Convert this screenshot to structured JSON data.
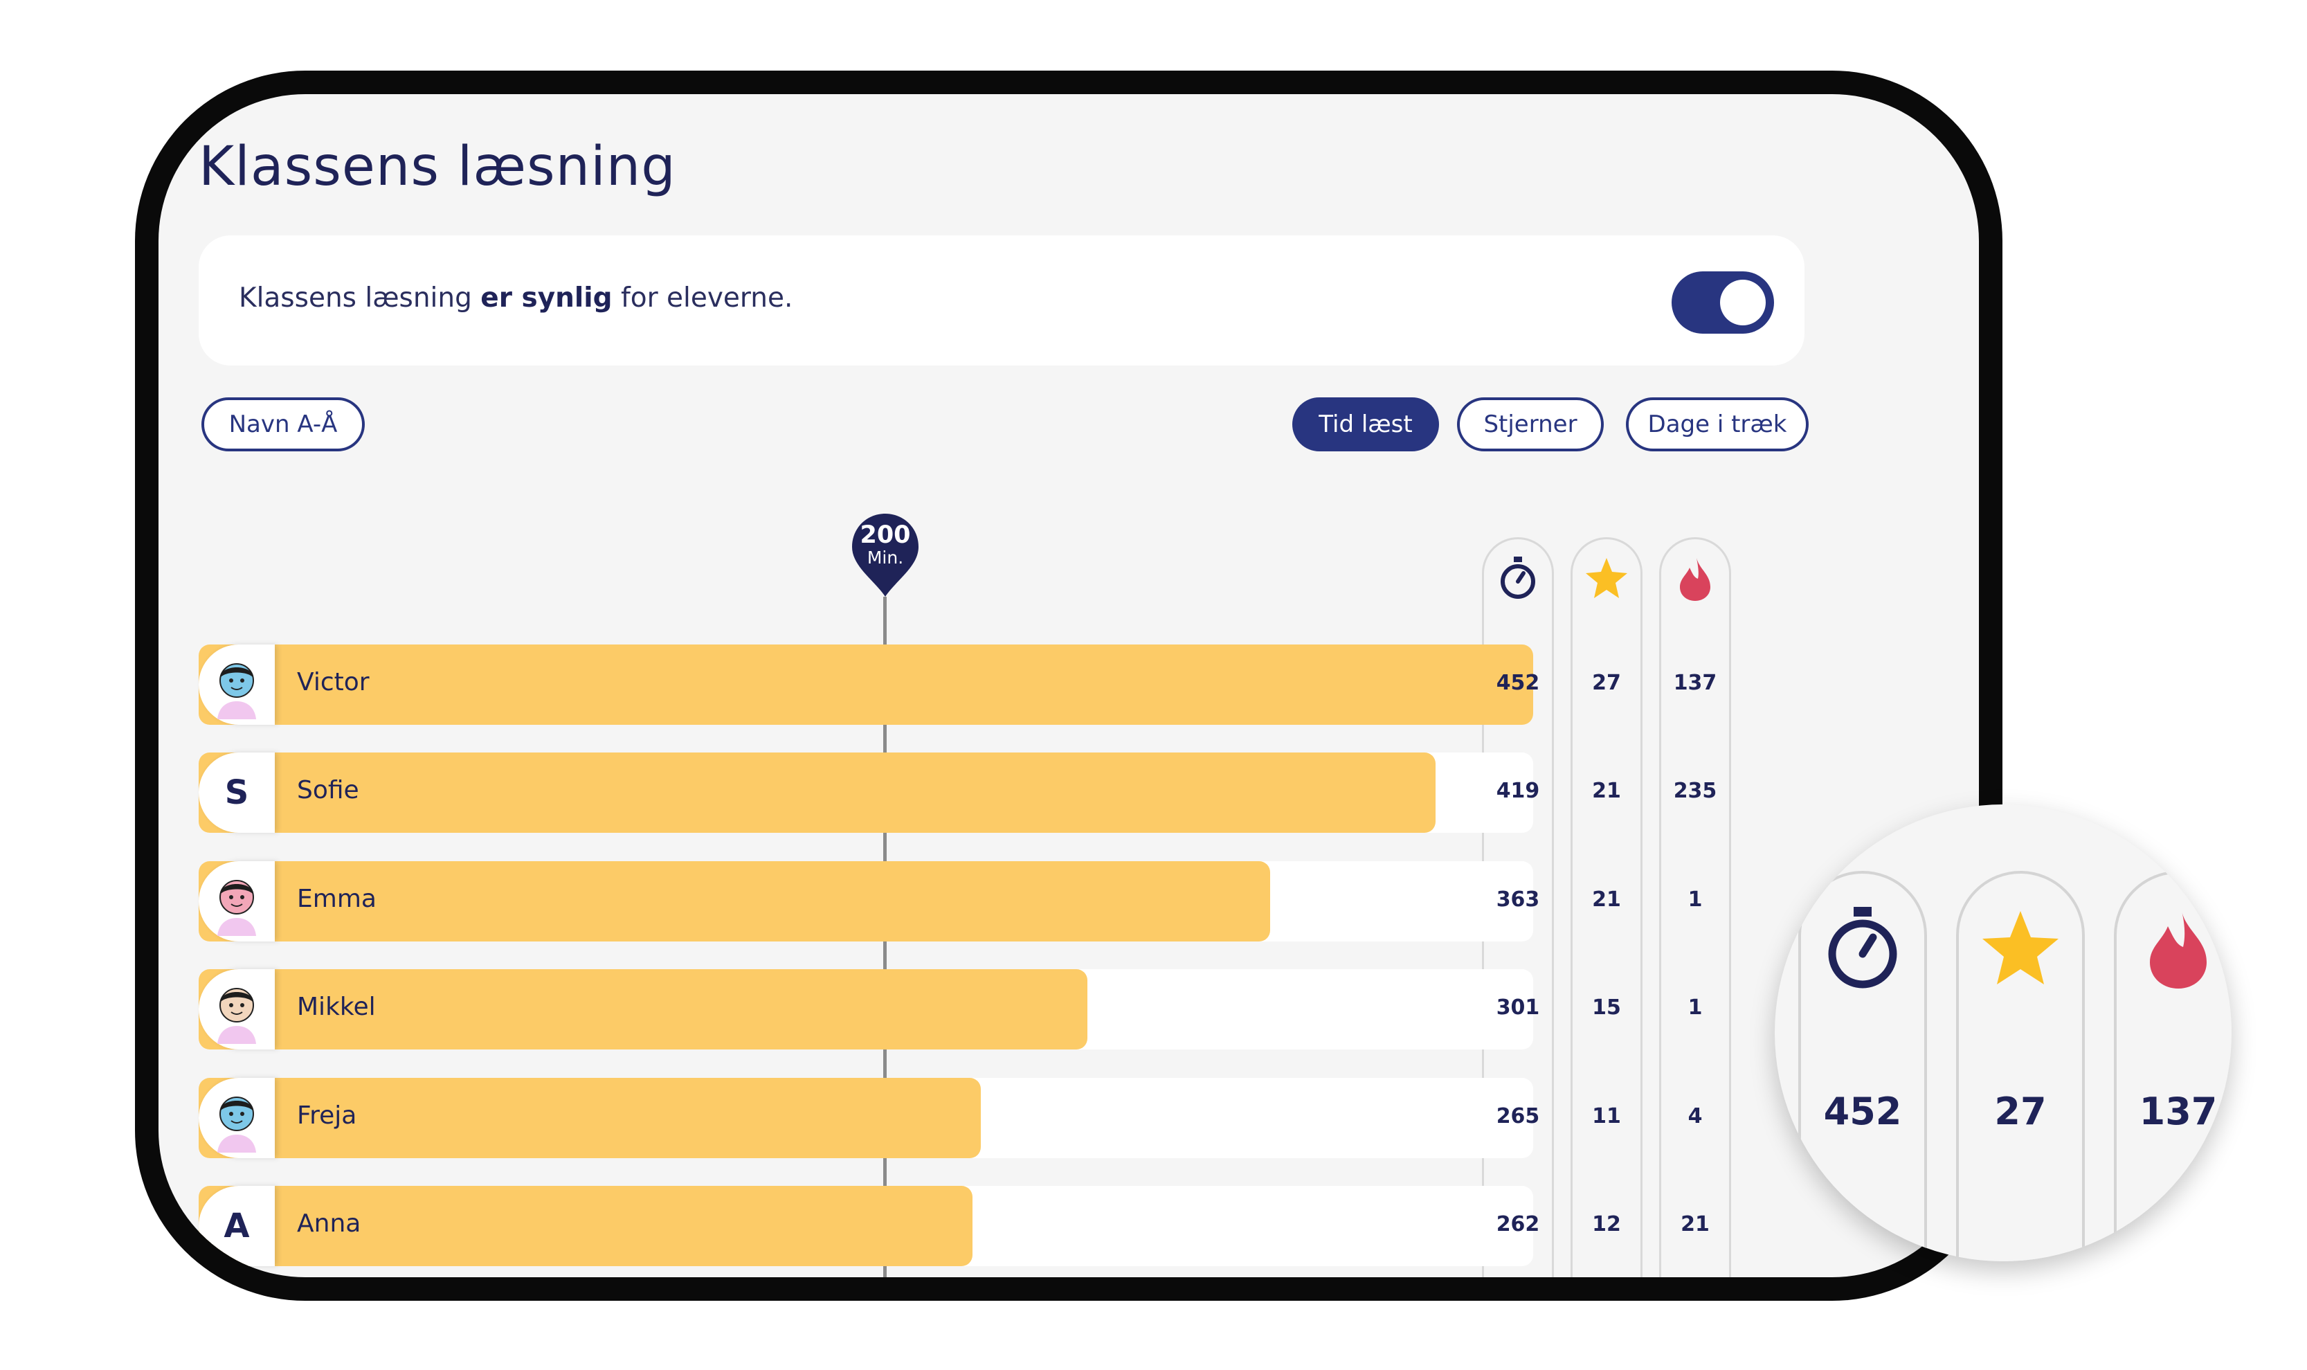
{
  "page": {
    "title": "Klassens læsning",
    "visibility": {
      "text_before": "Klassens læsning ",
      "text_bold": "er synlig",
      "text_after": " for eleverne.",
      "toggle_on": true
    },
    "sort": {
      "name_label": "Navn A-Å",
      "time_label": "Tid læst",
      "stars_label": "Stjerner",
      "streak_label": "Dage i træk",
      "active": "time"
    },
    "marker": {
      "value": "200",
      "unit": "Min."
    },
    "columns": [
      {
        "icon": "stopwatch-icon"
      },
      {
        "icon": "star-icon"
      },
      {
        "icon": "flame-icon"
      }
    ],
    "students": [
      {
        "name": "Victor",
        "avatar": "avatar-illustration",
        "minutes": "452",
        "stars": "27",
        "streak": "137"
      },
      {
        "name": "Sofie",
        "avatar_letter": "S",
        "minutes": "419",
        "stars": "21",
        "streak": "235"
      },
      {
        "name": "Emma",
        "avatar": "avatar-illustration",
        "minutes": "363",
        "stars": "21",
        "streak": "1"
      },
      {
        "name": "Mikkel",
        "avatar": "avatar-illustration",
        "minutes": "301",
        "stars": "15",
        "streak": "1"
      },
      {
        "name": "Freja",
        "avatar": "avatar-illustration",
        "minutes": "265",
        "stars": "11",
        "streak": "4"
      },
      {
        "name": "Anna",
        "avatar_letter": "A",
        "minutes": "262",
        "stars": "12",
        "streak": "21"
      }
    ],
    "zoom": {
      "minutes": "452",
      "stars": "27",
      "streak": "137"
    },
    "colors": {
      "navy": "#283580",
      "bar": "#fccb67",
      "star": "#fbbf24",
      "flame": "#d9435c"
    }
  }
}
